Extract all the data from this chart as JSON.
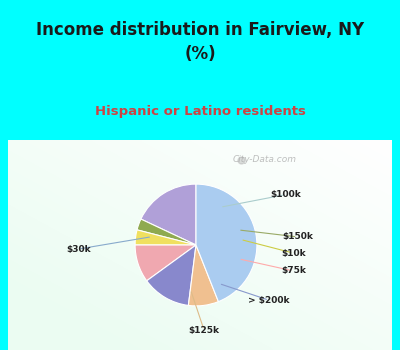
{
  "title": "Income distribution in Fairview, NY\n(%)",
  "subtitle": "Hispanic or Latino residents",
  "labels": [
    "$100k",
    "$150k",
    "$10k",
    "$75k",
    "> $200k",
    "$125k",
    "$30k"
  ],
  "sizes": [
    18,
    3,
    4,
    10,
    13,
    8,
    44
  ],
  "colors": [
    "#b0a0d8",
    "#8faa50",
    "#f0e060",
    "#f0a8b0",
    "#8888cc",
    "#f0c090",
    "#aaccf0"
  ],
  "bg_color": "#00ffff",
  "title_color": "#1a1a1a",
  "subtitle_color": "#cc4444",
  "watermark": "City-Data.com",
  "label_color": "#222222",
  "startangle": 90,
  "line_colors": {
    "$100k": "#aacccc",
    "$150k": "#99aa66",
    "$10k": "#cccc44",
    "$75k": "#ffaaaa",
    "> $200k": "#8899cc",
    "$125k": "#ddbb88",
    "$30k": "#88aacc"
  }
}
